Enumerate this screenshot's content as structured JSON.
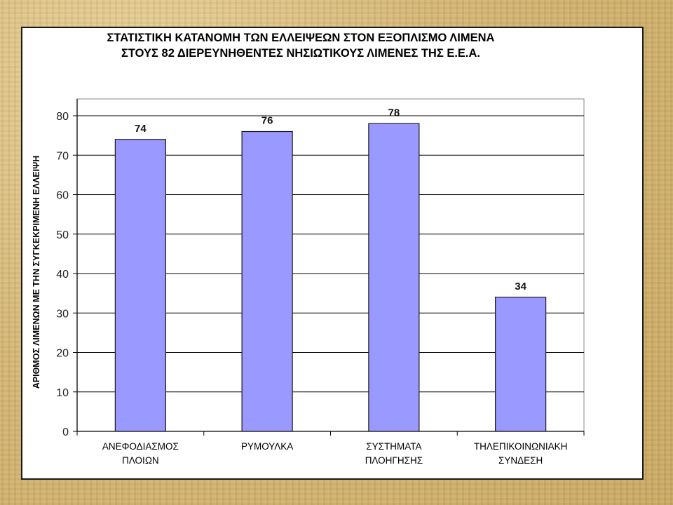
{
  "chart_data": {
    "type": "bar",
    "title_lines": [
      "ΣΤΑΤΙΣΤΙΚΗ ΚΑΤΑΝΟΜΗ ΤΩΝ ΕΛΛΕΙΨΕΩΝ ΣΤΟΝ ΕΞΟΠΛΙΣΜΟ ΛΙΜΕΝΑ",
      "ΣΤΟΥΣ 82 ΔΙΕΡΕΥΝΗΘΕΝΤΕΣ ΝΗΣΙΩΤΙΚΟΥΣ ΛΙΜΕΝΕΣ ΤΗΣ Ε.Ε.Α."
    ],
    "categories": [
      [
        "ΑΝΕΦΟΔΙΑΣΜΟΣ",
        "ΠΛΟΙΩΝ"
      ],
      [
        "ΡΥΜΟΥΛΚΑ"
      ],
      [
        "ΣΥΣΤΗΜΑΤΑ",
        "ΠΛΟΗΓΗΣΗΣ"
      ],
      [
        "ΤΗΛΕΠΙΚΟΙΝΩΝΙΑΚΗ",
        "ΣΥΝΔΕΣΗ"
      ]
    ],
    "values": [
      74,
      76,
      78,
      34
    ],
    "data_labels": [
      "74",
      "76",
      "78",
      "34"
    ],
    "ylabel": "ΑΡΙΘΜΟΣ ΛΙΜΕΝΩΝ ΜΕ ΤΗΝ ΣΥΓΚΕΚΡΙΜΕΝΗ ΕΛΛΕΙΨΗ",
    "xlabel": "",
    "ylim": [
      0,
      80
    ],
    "yticks": [
      0,
      10,
      20,
      30,
      40,
      50,
      60,
      70,
      80
    ],
    "grid": true,
    "legend": "none",
    "colors": {
      "bar_fill": "#9999ff",
      "bar_stroke": "#1a1a1a",
      "gridline": "#000000",
      "plot_background": "#ffffff",
      "page_background": "#d8bf7e"
    }
  }
}
